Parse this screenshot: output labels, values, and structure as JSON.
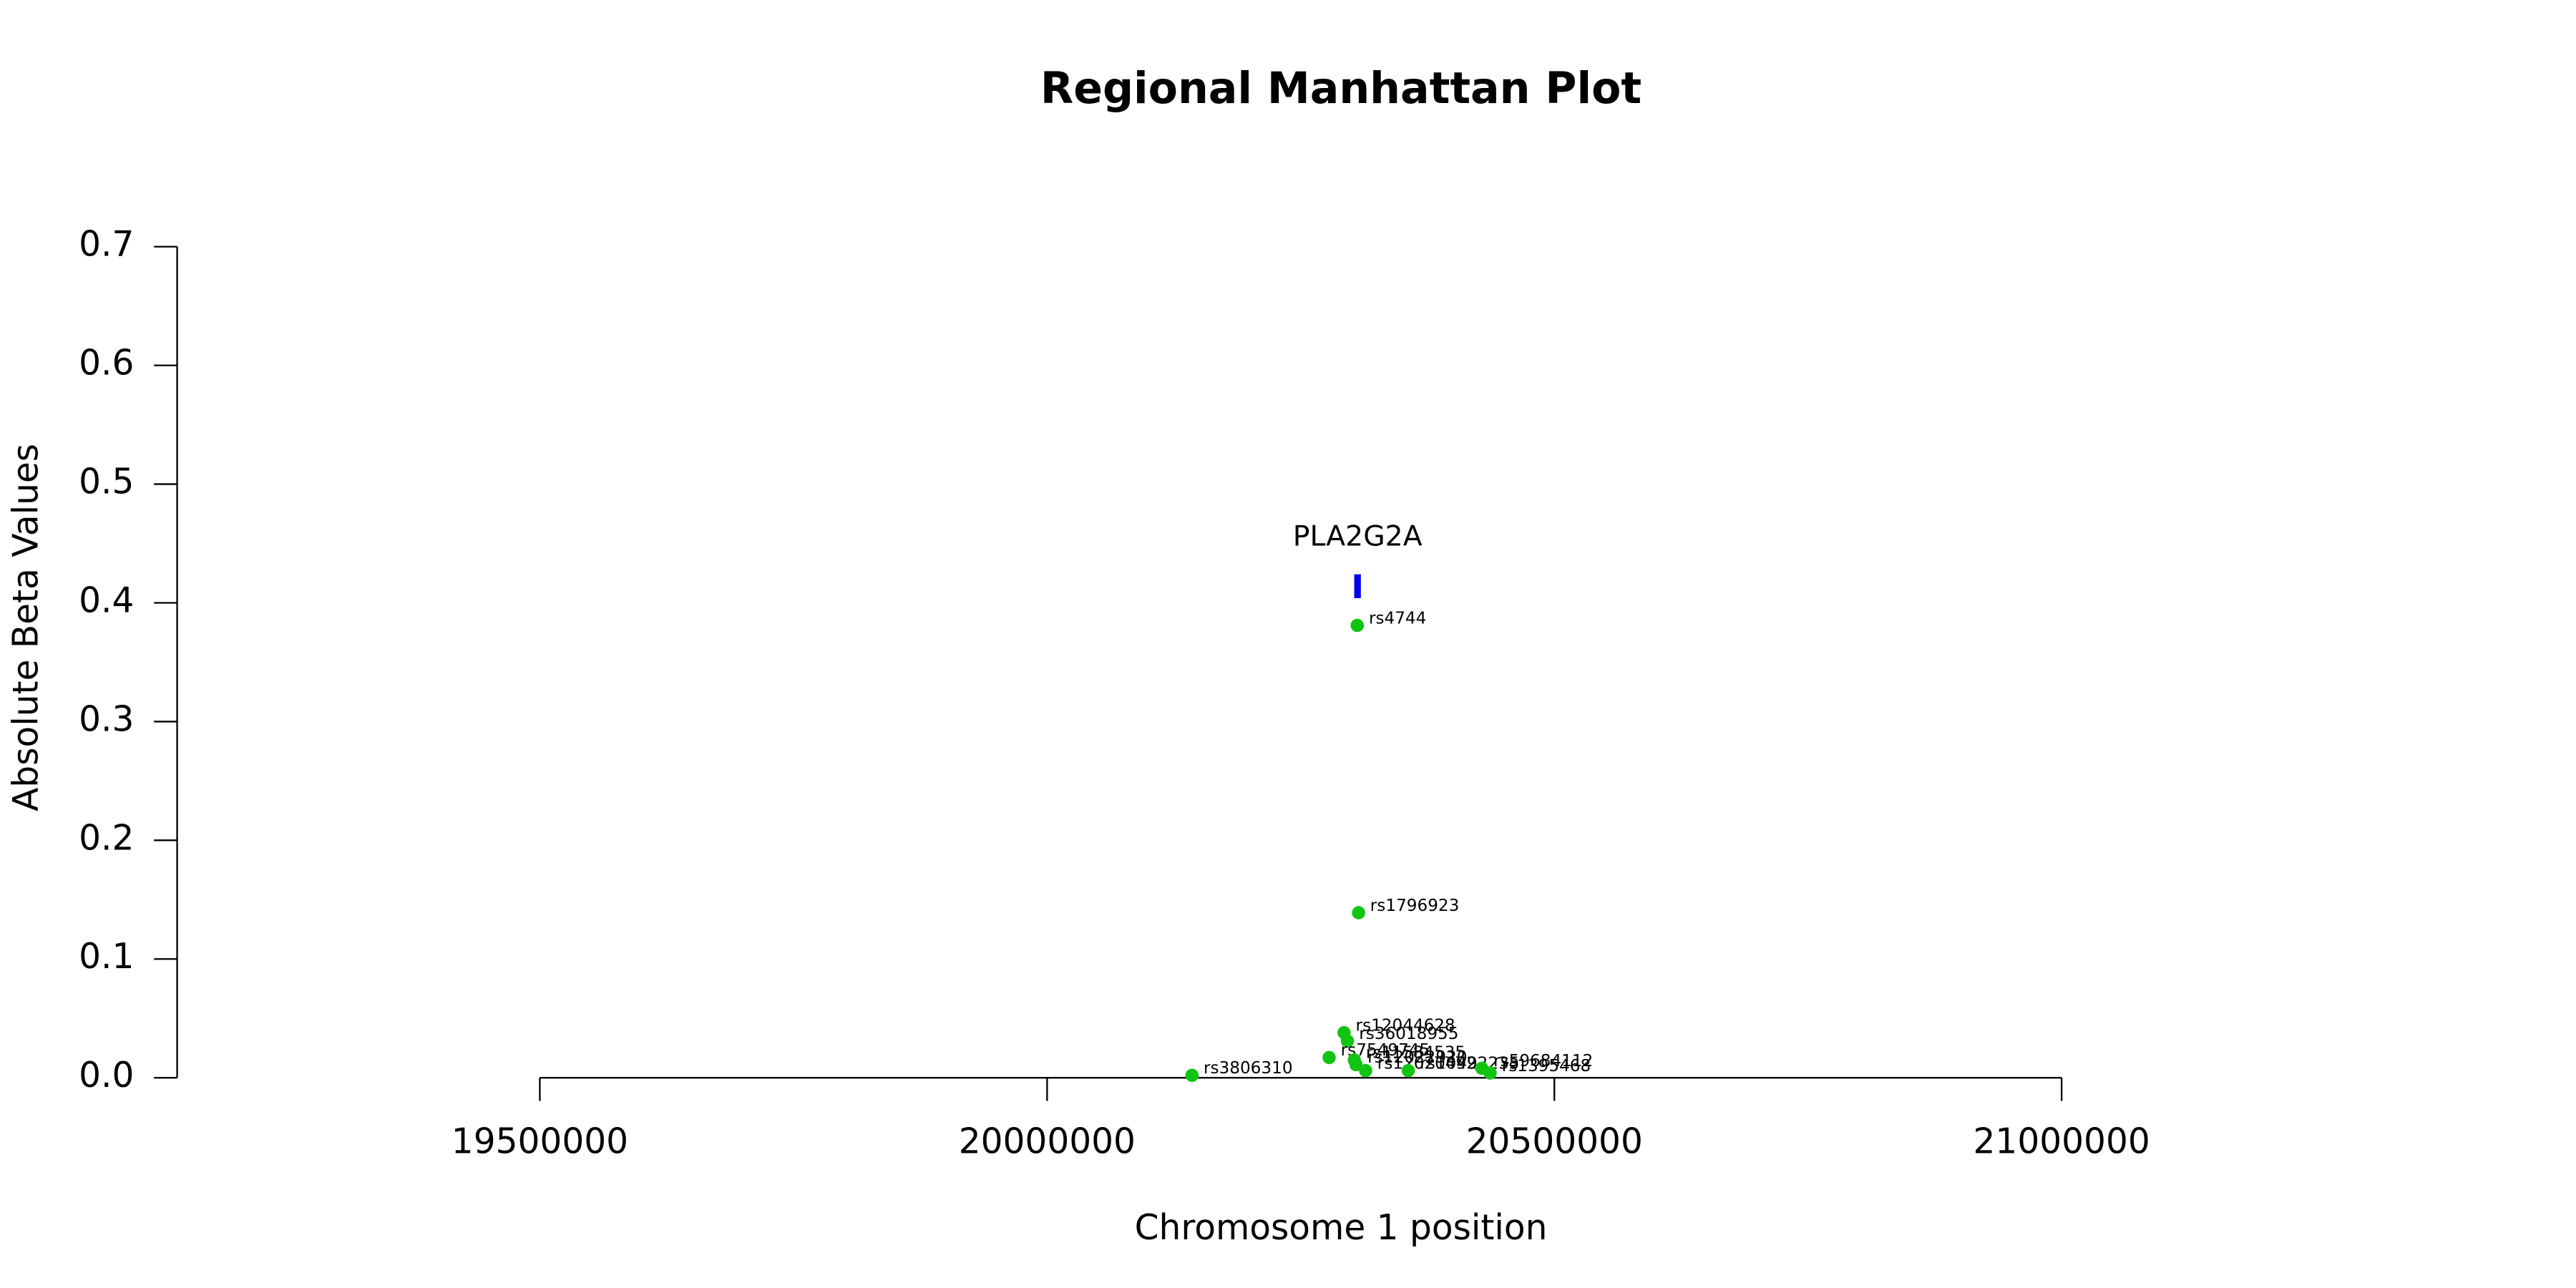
{
  "chart_data": {
    "type": "scatter",
    "title": "Regional Manhattan Plot",
    "x_label": "Chromosome 1 position",
    "y_label": "Absolute Beta Values",
    "x": [
      20305700,
      20307000,
      20292700,
      20296000,
      20278000,
      20302800,
      20304500,
      20314000,
      20356000,
      20142800,
      20428500,
      20436700
    ],
    "values": [
      0.381,
      0.139,
      0.038,
      0.031,
      0.017,
      0.015,
      0.011,
      0.006,
      0.006,
      0.002,
      0.008,
      0.004
    ],
    "point_labels": [
      "rs4744",
      "rs1796923",
      "rs12044628",
      "rs36018955",
      "rs7549745",
      "rs11584535",
      "rs12022920",
      "rs12020492",
      "rs10492235",
      "rs3806310",
      "rs59684112",
      "rs1395468"
    ],
    "color": "#11c411",
    "xlim": [
      19142500,
      21445000
    ],
    "ylim": [
      0,
      0.7
    ],
    "xticks": [
      19500000,
      20000000,
      20500000,
      21000000
    ],
    "yticks": [
      {
        "value": 0,
        "label": "0.0"
      },
      0.1,
      0.2,
      0.3,
      0.4,
      0.5,
      0.6,
      0.7
    ],
    "genes": [
      {
        "name": "PLA2G2A",
        "x": 20306000,
        "ylow": 0.404,
        "yhigh": 0.424,
        "color": "#0000ee"
      }
    ]
  }
}
